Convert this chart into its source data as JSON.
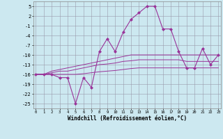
{
  "x": [
    0,
    1,
    2,
    3,
    4,
    5,
    6,
    7,
    8,
    9,
    10,
    11,
    12,
    13,
    14,
    15,
    16,
    17,
    18,
    19,
    20,
    21,
    22,
    23
  ],
  "y_main": [
    -16,
    -16,
    -16,
    -17,
    -17,
    -25,
    -17,
    -20,
    -9,
    -5,
    -9,
    -3,
    1,
    3,
    5,
    5,
    -2,
    -2,
    -9,
    -14,
    -14,
    -8,
    -13,
    -10
  ],
  "y_smooth1": [
    -16,
    -16,
    -15,
    -14.5,
    -14,
    -13.5,
    -13,
    -12.5,
    -12,
    -11.5,
    -11,
    -10.5,
    -10,
    -10,
    -10,
    -10,
    -10,
    -10,
    -10,
    -10,
    -10,
    -10,
    -10,
    -10
  ],
  "y_smooth2": [
    -16,
    -16,
    -15.5,
    -15,
    -15,
    -14.5,
    -14,
    -13.5,
    -13,
    -12.8,
    -12.5,
    -12,
    -11.8,
    -11.5,
    -11.5,
    -11.5,
    -11.5,
    -11.5,
    -11.5,
    -12,
    -12,
    -12,
    -12,
    -12
  ],
  "y_smooth3": [
    -16,
    -16,
    -16,
    -16,
    -16,
    -16,
    -15.8,
    -15.5,
    -15.2,
    -15,
    -14.8,
    -14.5,
    -14.2,
    -14,
    -14,
    -14,
    -14,
    -14,
    -14,
    -14,
    -14,
    -14,
    -14,
    -14
  ],
  "line_color": "#993399",
  "bg_color": "#cce8f0",
  "grid_color": "#9999aa",
  "xlabel": "Windchill (Refroidissement éolien,°C)",
  "yticks": [
    5,
    2,
    -1,
    -4,
    -7,
    -10,
    -13,
    -16,
    -19,
    -22,
    -25
  ],
  "xticks": [
    0,
    1,
    2,
    3,
    4,
    5,
    6,
    7,
    8,
    9,
    10,
    11,
    12,
    13,
    14,
    15,
    16,
    17,
    18,
    19,
    20,
    21,
    22,
    23
  ],
  "xlim": [
    -0.3,
    23.3
  ],
  "ylim": [
    -26.5,
    6.5
  ]
}
